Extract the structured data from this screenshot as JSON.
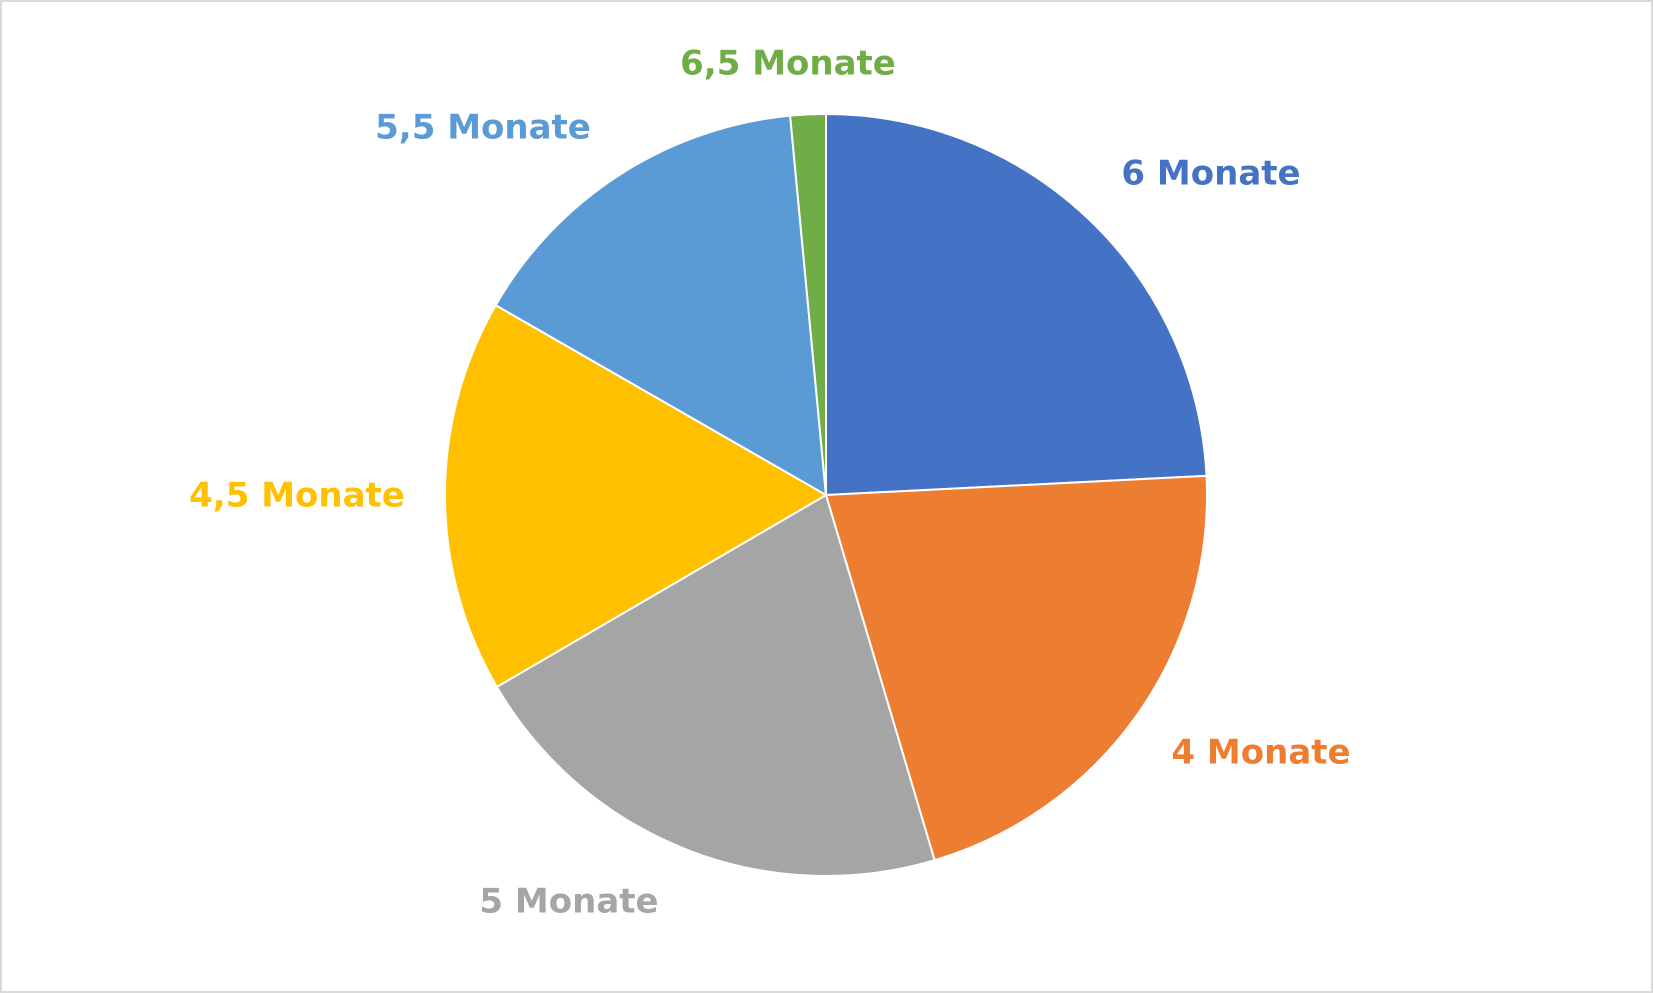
{
  "chart_data": {
    "type": "pie",
    "categories": [
      "6 Monate",
      "4 Monate",
      "5 Monate",
      "4,5 Monate",
      "5,5 Monate",
      "6,5 Monate"
    ],
    "values": [
      24.2,
      21.2,
      21.2,
      16.7,
      15.2,
      1.5
    ],
    "colors": [
      "#4472c4",
      "#ed7d31",
      "#a5a5a5",
      "#ffc000",
      "#5b9bd5",
      "#70ad47"
    ]
  }
}
